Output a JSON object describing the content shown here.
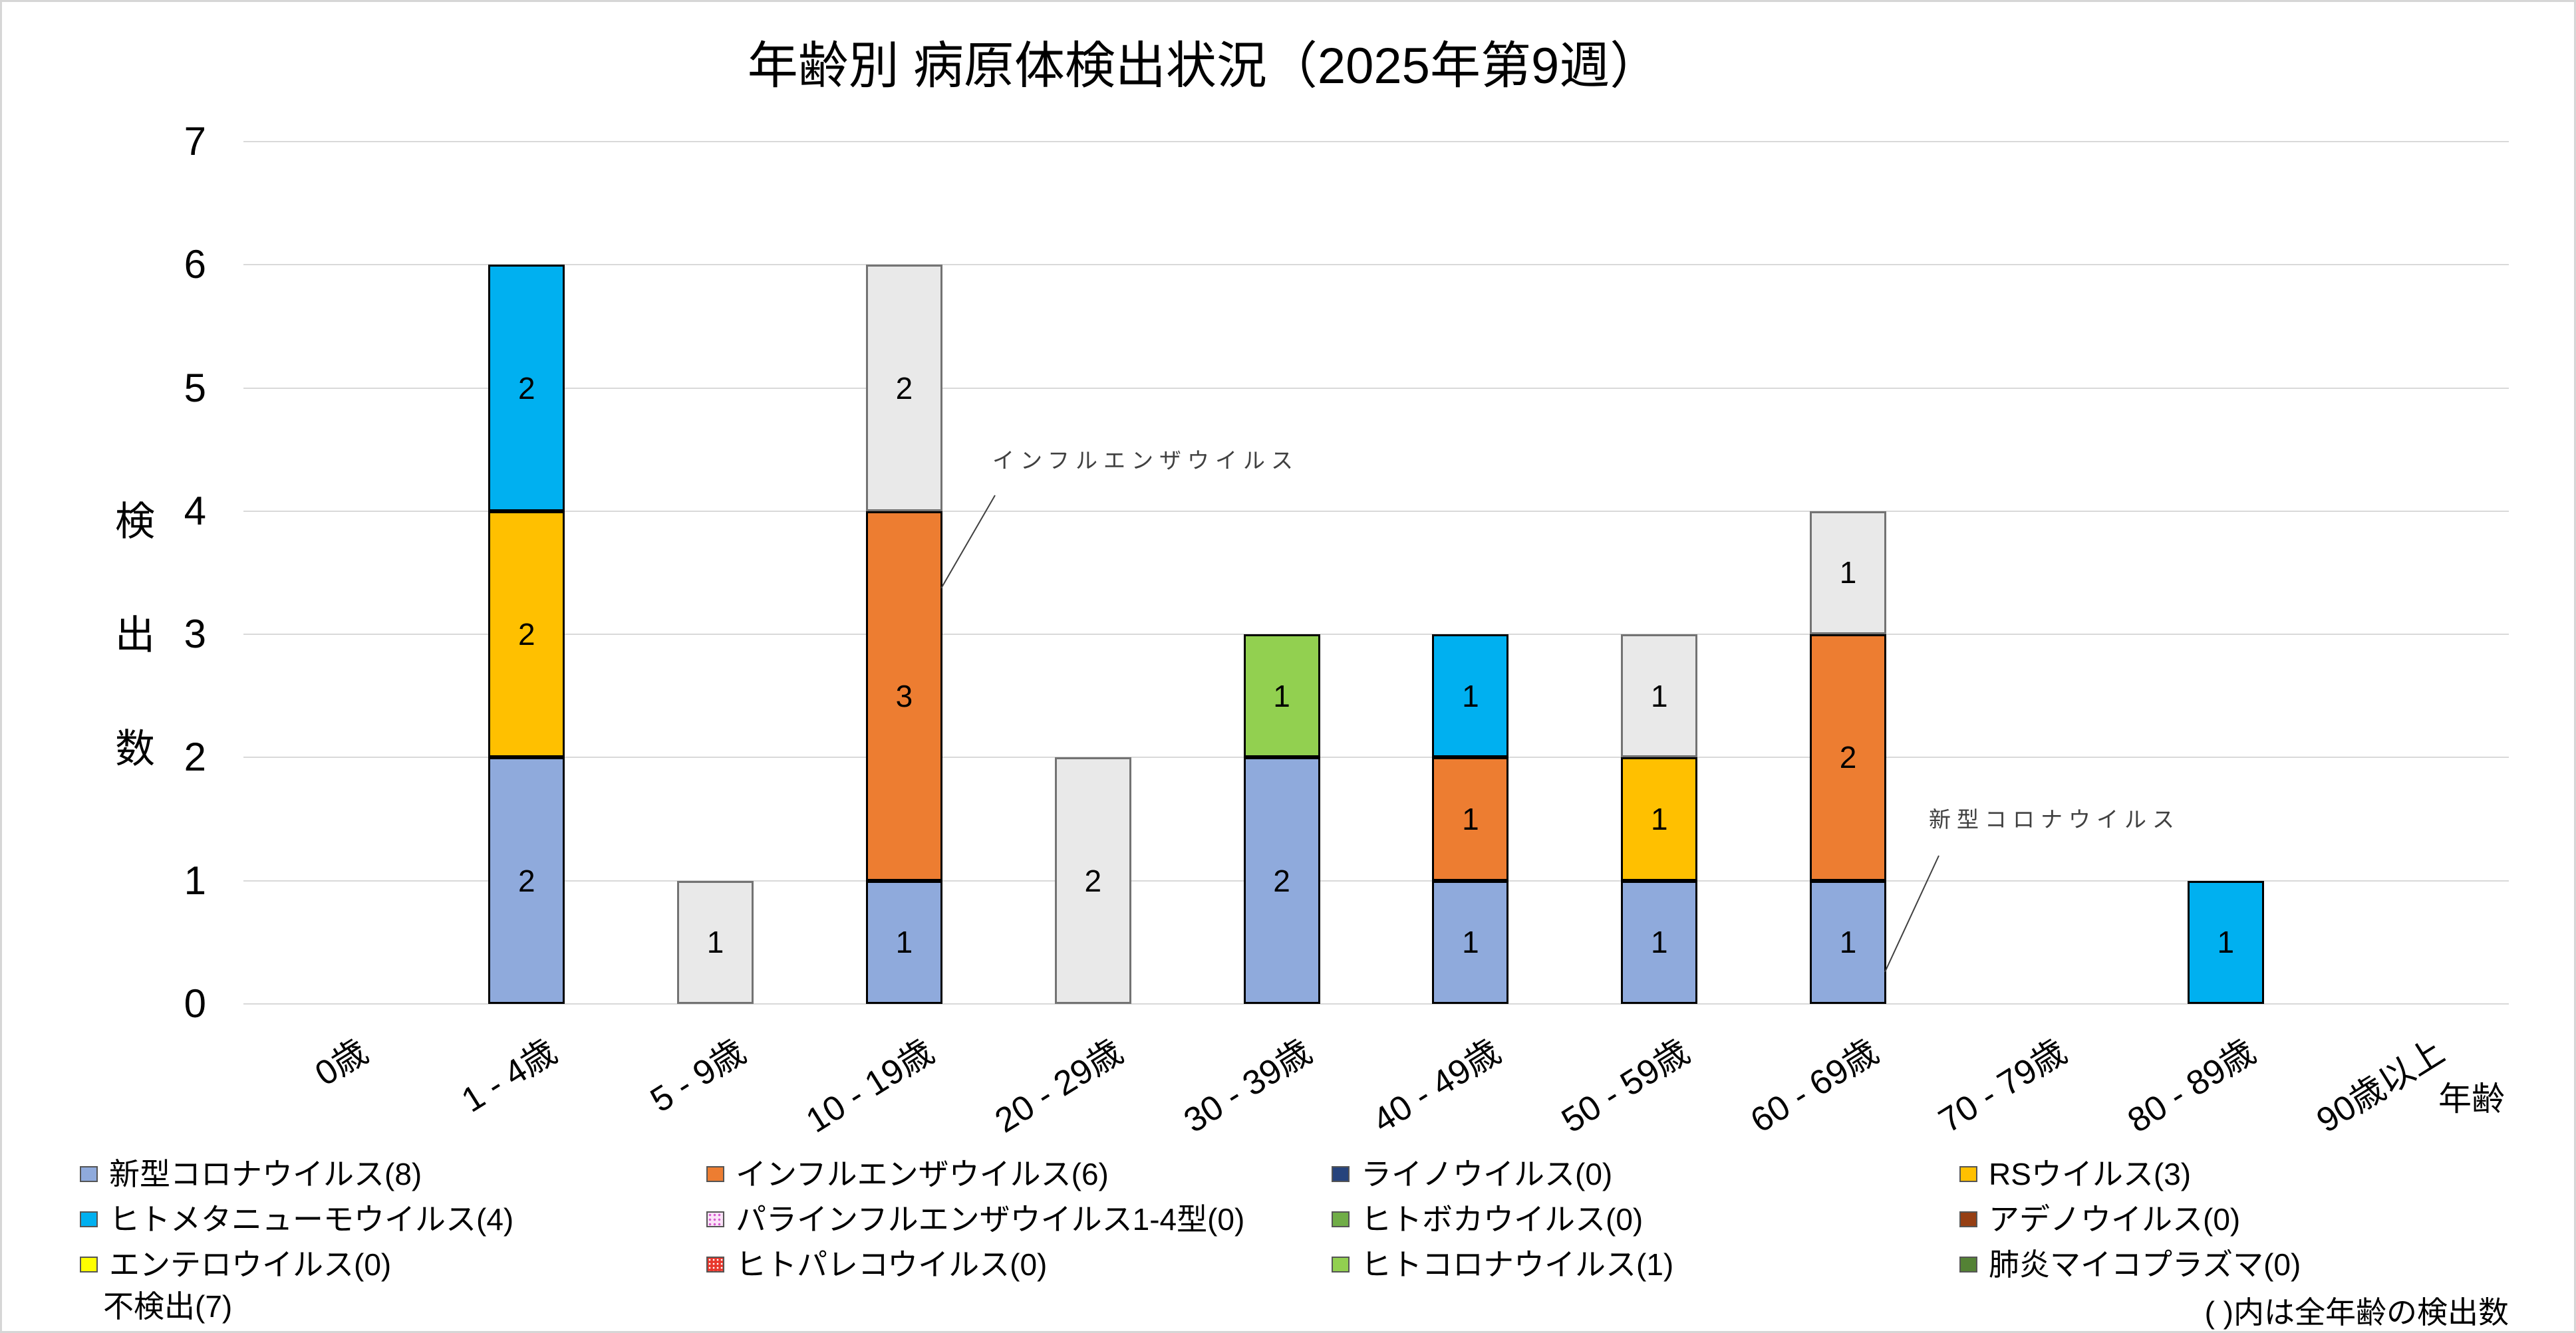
{
  "title": "年齢別 病原体検出状況（2025年第9週）",
  "y_axis": {
    "title": "検出数",
    "ticks": [
      0,
      1,
      2,
      3,
      4,
      5,
      6,
      7
    ]
  },
  "x_axis": {
    "title": "年齢"
  },
  "footnote": "( )内は全年齢の検出数",
  "annotations": [
    {
      "text": "インフルエンザウイルス",
      "target": "10 - 19歳 インフルエンザウイルス segment"
    },
    {
      "text": "新型コロナウイルス",
      "target": "60 - 69歳 新型コロナウイルス segment"
    }
  ],
  "legend": {
    "items": [
      {
        "label": "新型コロナウイルス(8)",
        "swatch": true
      },
      {
        "label": "インフルエンザウイルス(6)",
        "swatch": true
      },
      {
        "label": "ライノウイルス(0)",
        "swatch": true
      },
      {
        "label": "RSウイルス(3)",
        "swatch": true
      },
      {
        "label": "ヒトメタニューモウイルス(4)",
        "swatch": true
      },
      {
        "label": "パラインフルエンザウイルス1-4型(0)",
        "swatch": true
      },
      {
        "label": "ヒトボカウイルス(0)",
        "swatch": true
      },
      {
        "label": "アデノウイルス(0)",
        "swatch": true
      },
      {
        "label": "エンテロウイルス(0)",
        "swatch": true
      },
      {
        "label": "ヒトパレコウイルス(0)",
        "swatch": true
      },
      {
        "label": "ヒトコロナウイルス(1)",
        "swatch": true
      },
      {
        "label": "肺炎マイコプラズマ(0)",
        "swatch": true
      },
      {
        "label": "不検出(7)",
        "swatch": false
      }
    ]
  },
  "chart_data": {
    "type": "bar",
    "subtype": "stacked",
    "title": "年齢別 病原体検出状況（2025年第9週）",
    "xlabel": "年齢",
    "ylabel": "検出数",
    "ylim": [
      0,
      7
    ],
    "grid": true,
    "legend_position": "bottom",
    "categories": [
      "0歳",
      "1 - 4歳",
      "5 - 9歳",
      "10 - 19歳",
      "20 - 29歳",
      "30 - 39歳",
      "40 - 49歳",
      "50 - 59歳",
      "60 - 69歳",
      "70 - 79歳",
      "80 - 89歳",
      "90歳以上"
    ],
    "series": [
      {
        "name": "新型コロナウイルス",
        "total": 8,
        "color": "#8FAADC",
        "border": "#000000",
        "values": [
          0,
          2,
          0,
          1,
          0,
          2,
          1,
          1,
          1,
          0,
          0,
          0
        ]
      },
      {
        "name": "インフルエンザウイルス",
        "total": 6,
        "color": "#ED7D31",
        "border": "#000000",
        "values": [
          0,
          0,
          0,
          3,
          0,
          0,
          1,
          0,
          2,
          0,
          0,
          0
        ]
      },
      {
        "name": "ライノウイルス",
        "total": 0,
        "color": "#26437C",
        "border": "#000000",
        "values": [
          0,
          0,
          0,
          0,
          0,
          0,
          0,
          0,
          0,
          0,
          0,
          0
        ]
      },
      {
        "name": "RSウイルス",
        "total": 3,
        "color": "#FFC000",
        "border": "#000000",
        "values": [
          0,
          2,
          0,
          0,
          0,
          0,
          0,
          1,
          0,
          0,
          0,
          0
        ]
      },
      {
        "name": "ヒトメタニューモウイルス",
        "total": 4,
        "color": "#00B0F0",
        "border": "#000000",
        "values": [
          0,
          2,
          0,
          0,
          0,
          0,
          1,
          0,
          0,
          0,
          1,
          0
        ]
      },
      {
        "name": "パラインフルエンザウイルス1-4型",
        "total": 0,
        "color": "#FBE3F8",
        "pattern": "pat-pink",
        "border": "#000000",
        "values": [
          0,
          0,
          0,
          0,
          0,
          0,
          0,
          0,
          0,
          0,
          0,
          0
        ]
      },
      {
        "name": "ヒトボカウイルス",
        "total": 0,
        "color": "#70AD47",
        "border": "#000000",
        "values": [
          0,
          0,
          0,
          0,
          0,
          0,
          0,
          0,
          0,
          0,
          0,
          0
        ]
      },
      {
        "name": "アデノウイルス",
        "total": 0,
        "color": "#963F13",
        "border": "#000000",
        "values": [
          0,
          0,
          0,
          0,
          0,
          0,
          0,
          0,
          0,
          0,
          0,
          0
        ]
      },
      {
        "name": "エンテロウイルス",
        "total": 0,
        "color": "#FFFF00",
        "border": "#7F7F7F",
        "values": [
          0,
          0,
          0,
          0,
          0,
          0,
          0,
          0,
          0,
          0,
          0,
          0
        ]
      },
      {
        "name": "ヒトパレコウイルス",
        "total": 0,
        "color": "#E8372C",
        "pattern": "pat-red",
        "border": "#000000",
        "values": [
          0,
          0,
          0,
          0,
          0,
          0,
          0,
          0,
          0,
          0,
          0,
          0
        ]
      },
      {
        "name": "ヒトコロナウイルス",
        "total": 1,
        "color": "#92D050",
        "border": "#000000",
        "values": [
          0,
          0,
          0,
          0,
          0,
          1,
          0,
          0,
          0,
          0,
          0,
          0
        ]
      },
      {
        "name": "肺炎マイコプラズマ",
        "total": 0,
        "color": "#548235",
        "border": "#000000",
        "values": [
          0,
          0,
          0,
          0,
          0,
          0,
          0,
          0,
          0,
          0,
          0,
          0
        ]
      },
      {
        "name": "不検出",
        "total": 7,
        "color": "#E9E9E9",
        "border": "#737373",
        "values": [
          0,
          0,
          1,
          2,
          2,
          0,
          0,
          1,
          1,
          0,
          0,
          0
        ]
      }
    ]
  }
}
